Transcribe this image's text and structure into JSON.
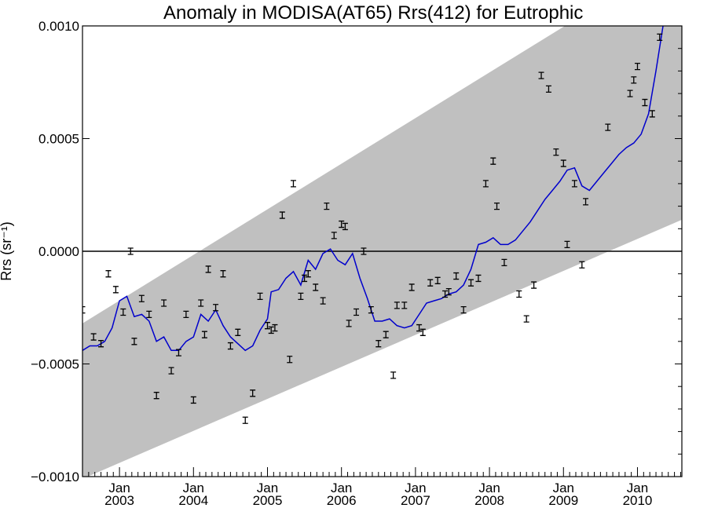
{
  "chart_data": {
    "type": "line",
    "title": "Anomaly in MODISA(AT65) Rrs(412) for Eutrophic",
    "ylabel": "Rrs (sr⁻¹)",
    "xlim": [
      2002.5,
      2010.6
    ],
    "ylim": [
      -0.001,
      0.001
    ],
    "grid": false,
    "y_ticks": [
      {
        "value": 0.001,
        "label": "0.0010"
      },
      {
        "value": 0.0005,
        "label": "0.0005"
      },
      {
        "value": 0.0,
        "label": "0.0000"
      },
      {
        "value": -0.0005,
        "label": "−0.0005"
      },
      {
        "value": -0.001,
        "label": "−0.0010"
      }
    ],
    "x_ticks": [
      {
        "value": 2003.0,
        "month": "Jan",
        "year": "2003"
      },
      {
        "value": 2004.0,
        "month": "Jan",
        "year": "2004"
      },
      {
        "value": 2005.0,
        "month": "Jan",
        "year": "2005"
      },
      {
        "value": 2006.0,
        "month": "Jan",
        "year": "2006"
      },
      {
        "value": 2007.0,
        "month": "Jan",
        "year": "2007"
      },
      {
        "value": 2008.0,
        "month": "Jan",
        "year": "2008"
      },
      {
        "value": 2009.0,
        "month": "Jan",
        "year": "2009"
      },
      {
        "value": 2010.0,
        "month": "Jan",
        "year": "2010"
      }
    ],
    "band": {
      "color": "#c0c0c0",
      "upper": [
        [
          2002.5,
          -0.00032
        ],
        [
          2010.6,
          0.00132
        ]
      ],
      "lower": [
        [
          2002.5,
          -0.00101
        ],
        [
          2010.6,
          0.00014
        ]
      ]
    },
    "zero_line": 0.0,
    "series": [
      {
        "kind": "line",
        "color": "#0000cc",
        "points": [
          [
            2002.5,
            -0.00044
          ],
          [
            2002.6,
            -0.00042
          ],
          [
            2002.7,
            -0.00042
          ],
          [
            2002.8,
            -0.0004
          ],
          [
            2002.9,
            -0.00034
          ],
          [
            2003.0,
            -0.00022
          ],
          [
            2003.1,
            -0.0002
          ],
          [
            2003.2,
            -0.00029
          ],
          [
            2003.3,
            -0.00028
          ],
          [
            2003.4,
            -0.00031
          ],
          [
            2003.5,
            -0.0004
          ],
          [
            2003.6,
            -0.00038
          ],
          [
            2003.7,
            -0.00044
          ],
          [
            2003.8,
            -0.00044
          ],
          [
            2003.9,
            -0.0004
          ],
          [
            2004.0,
            -0.00038
          ],
          [
            2004.1,
            -0.00028
          ],
          [
            2004.2,
            -0.00031
          ],
          [
            2004.3,
            -0.00026
          ],
          [
            2004.4,
            -0.00033
          ],
          [
            2004.5,
            -0.00038
          ],
          [
            2004.6,
            -0.00041
          ],
          [
            2004.7,
            -0.00044
          ],
          [
            2004.8,
            -0.00042
          ],
          [
            2004.9,
            -0.00035
          ],
          [
            2005.0,
            -0.0003
          ],
          [
            2005.05,
            -0.00018
          ],
          [
            2005.15,
            -0.00017
          ],
          [
            2005.25,
            -0.00012
          ],
          [
            2005.35,
            -9e-05
          ],
          [
            2005.45,
            -0.00015
          ],
          [
            2005.55,
            -4e-05
          ],
          [
            2005.65,
            -8e-05
          ],
          [
            2005.75,
            -1e-05
          ],
          [
            2005.85,
            1e-05
          ],
          [
            2005.95,
            -4e-05
          ],
          [
            2006.05,
            -6e-05
          ],
          [
            2006.15,
            -1e-05
          ],
          [
            2006.25,
            -0.00012
          ],
          [
            2006.35,
            -0.00021
          ],
          [
            2006.45,
            -0.00031
          ],
          [
            2006.55,
            -0.00031
          ],
          [
            2006.65,
            -0.0003
          ],
          [
            2006.75,
            -0.00033
          ],
          [
            2006.85,
            -0.00034
          ],
          [
            2006.95,
            -0.00033
          ],
          [
            2007.05,
            -0.00028
          ],
          [
            2007.15,
            -0.00023
          ],
          [
            2007.25,
            -0.00022
          ],
          [
            2007.35,
            -0.00021
          ],
          [
            2007.45,
            -0.00019
          ],
          [
            2007.55,
            -0.00018
          ],
          [
            2007.65,
            -0.00015
          ],
          [
            2007.75,
            -8e-05
          ],
          [
            2007.85,
            3e-05
          ],
          [
            2007.95,
            4e-05
          ],
          [
            2008.05,
            6e-05
          ],
          [
            2008.15,
            3e-05
          ],
          [
            2008.25,
            3e-05
          ],
          [
            2008.35,
            5e-05
          ],
          [
            2008.45,
            9e-05
          ],
          [
            2008.55,
            0.00013
          ],
          [
            2008.65,
            0.00018
          ],
          [
            2008.75,
            0.00023
          ],
          [
            2008.85,
            0.00027
          ],
          [
            2008.95,
            0.00031
          ],
          [
            2009.05,
            0.00036
          ],
          [
            2009.15,
            0.00037
          ],
          [
            2009.25,
            0.00029
          ],
          [
            2009.35,
            0.00027
          ],
          [
            2009.45,
            0.00031
          ],
          [
            2009.55,
            0.00035
          ],
          [
            2009.65,
            0.00039
          ],
          [
            2009.75,
            0.00043
          ],
          [
            2009.85,
            0.00046
          ],
          [
            2009.95,
            0.00048
          ],
          [
            2010.05,
            0.00052
          ],
          [
            2010.15,
            0.00061
          ],
          [
            2010.25,
            0.0008
          ],
          [
            2010.35,
            0.00101
          ]
        ]
      },
      {
        "kind": "errorbar",
        "color": "#000000",
        "points": [
          [
            2002.5,
            -0.00026
          ],
          [
            2002.65,
            -0.00038
          ],
          [
            2002.75,
            -0.00041
          ],
          [
            2002.85,
            -0.0001
          ],
          [
            2002.95,
            -0.00017
          ],
          [
            2003.05,
            -0.00027
          ],
          [
            2003.15,
            0.0
          ],
          [
            2003.2,
            -0.0004
          ],
          [
            2003.3,
            -0.00021
          ],
          [
            2003.4,
            -0.00028
          ],
          [
            2003.5,
            -0.00064
          ],
          [
            2003.6,
            -0.00023
          ],
          [
            2003.7,
            -0.00053
          ],
          [
            2003.8,
            -0.00045
          ],
          [
            2003.9,
            -0.00028
          ],
          [
            2004.0,
            -0.00066
          ],
          [
            2004.1,
            -0.00023
          ],
          [
            2004.15,
            -0.00037
          ],
          [
            2004.2,
            -8e-05
          ],
          [
            2004.3,
            -0.00025
          ],
          [
            2004.4,
            -0.0001
          ],
          [
            2004.5,
            -0.00042
          ],
          [
            2004.6,
            -0.00036
          ],
          [
            2004.7,
            -0.00075
          ],
          [
            2004.8,
            -0.00063
          ],
          [
            2004.9,
            -0.0002
          ],
          [
            2005.0,
            -0.00033
          ],
          [
            2005.05,
            -0.00035
          ],
          [
            2005.1,
            -0.00034
          ],
          [
            2005.2,
            0.00016
          ],
          [
            2005.3,
            -0.00048
          ],
          [
            2005.35,
            0.0003
          ],
          [
            2005.45,
            -0.0002
          ],
          [
            2005.5,
            -0.00012
          ],
          [
            2005.55,
            -0.0001
          ],
          [
            2005.65,
            -0.00016
          ],
          [
            2005.75,
            -0.00022
          ],
          [
            2005.8,
            0.0002
          ],
          [
            2005.9,
            7e-05
          ],
          [
            2006.0,
            0.00012
          ],
          [
            2006.05,
            0.00011
          ],
          [
            2006.1,
            -0.00032
          ],
          [
            2006.2,
            -0.00027
          ],
          [
            2006.3,
            0.0
          ],
          [
            2006.4,
            -0.00026
          ],
          [
            2006.5,
            -0.00041
          ],
          [
            2006.6,
            -0.00037
          ],
          [
            2006.7,
            -0.00055
          ],
          [
            2006.75,
            -0.00024
          ],
          [
            2006.85,
            -0.00024
          ],
          [
            2006.95,
            -0.00016
          ],
          [
            2007.05,
            -0.00034
          ],
          [
            2007.1,
            -0.00036
          ],
          [
            2007.2,
            -0.00014
          ],
          [
            2007.3,
            -0.00013
          ],
          [
            2007.4,
            -0.00019
          ],
          [
            2007.45,
            -0.00018
          ],
          [
            2007.55,
            -0.00011
          ],
          [
            2007.65,
            -0.00026
          ],
          [
            2007.75,
            -0.00014
          ],
          [
            2007.85,
            -0.00012
          ],
          [
            2007.95,
            0.0003
          ],
          [
            2008.05,
            0.0004
          ],
          [
            2008.1,
            0.0002
          ],
          [
            2008.2,
            -5e-05
          ],
          [
            2008.4,
            -0.00019
          ],
          [
            2008.5,
            -0.0003
          ],
          [
            2008.6,
            -0.00015
          ],
          [
            2008.7,
            0.00078
          ],
          [
            2008.8,
            0.00072
          ],
          [
            2008.9,
            0.00044
          ],
          [
            2009.0,
            0.00039
          ],
          [
            2009.05,
            3e-05
          ],
          [
            2009.15,
            0.0003
          ],
          [
            2009.25,
            -6e-05
          ],
          [
            2009.3,
            0.00022
          ],
          [
            2009.6,
            0.00055
          ],
          [
            2009.9,
            0.0007
          ],
          [
            2009.95,
            0.00076
          ],
          [
            2010.0,
            0.00082
          ],
          [
            2010.1,
            0.00066
          ],
          [
            2010.2,
            0.00061
          ],
          [
            2010.3,
            0.00095
          ]
        ]
      }
    ]
  }
}
